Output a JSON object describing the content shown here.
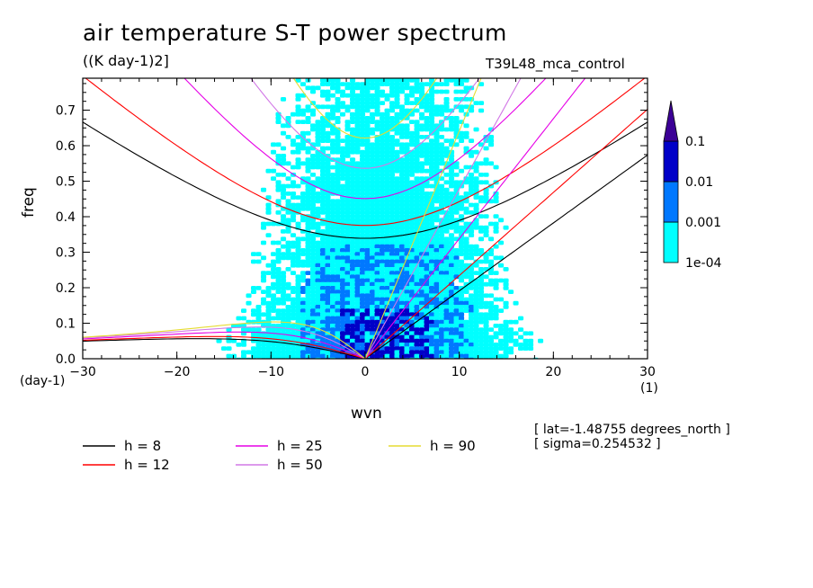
{
  "chart_data": {
    "type": "contour",
    "title": "air temperature S-T power spectrum",
    "units": "((K day-1)2]",
    "run_name": "T39L48_mca_control",
    "xlabel": "wvn",
    "ylabel": "freq",
    "x_unit_left": "(day-1)",
    "x_unit_right": "(1)",
    "xlim": [
      -30,
      30
    ],
    "ylim": [
      0,
      0.79
    ],
    "x_ticks": [
      -30,
      -20,
      -10,
      0,
      10,
      20,
      30
    ],
    "y_ticks": [
      0.0,
      0.1,
      0.2,
      0.3,
      0.4,
      0.5,
      0.6,
      0.7
    ],
    "x_tick_labels": [
      "−30",
      "−20",
      "−10",
      "0",
      "10",
      "20",
      "30"
    ],
    "y_tick_labels": [
      "0.0",
      "0.1",
      "0.2",
      "0.3",
      "0.4",
      "0.5",
      "0.6",
      "0.7"
    ],
    "colorbar": {
      "levels": [
        "1e-04",
        "0.001",
        "0.01",
        "0.1"
      ],
      "colors": [
        "#00ffff",
        "#0078ff",
        "#0000c8",
        "#3c0096"
      ]
    },
    "dispersion_curves": [
      {
        "name": "h =  8",
        "h": 8,
        "color": "#000000"
      },
      {
        "name": "h = 12",
        "h": 12,
        "color": "#ff0000"
      },
      {
        "name": "h = 25",
        "h": 25,
        "color": "#e600e6"
      },
      {
        "name": "h = 50",
        "h": 50,
        "color": "#d278e6"
      },
      {
        "name": "h = 90",
        "h": 90,
        "color": "#e6dc32"
      }
    ],
    "annotations": [
      "[ lat=-1.48755 degrees_north ]",
      "[ sigma=0.254532 ]"
    ]
  }
}
